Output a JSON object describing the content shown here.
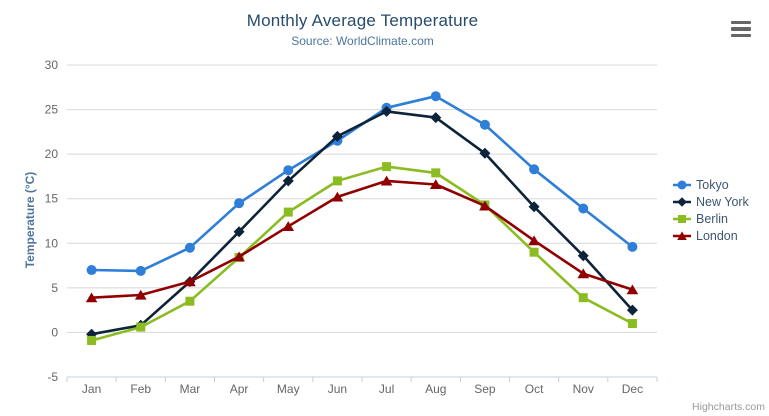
{
  "header": {
    "title": "Monthly Average Temperature",
    "subtitle": "Source: WorldClimate.com"
  },
  "credits": "Highcharts.com",
  "chart_data": {
    "type": "line",
    "title": "Monthly Average Temperature",
    "subtitle": "Source: WorldClimate.com",
    "categories": [
      "Jan",
      "Feb",
      "Mar",
      "Apr",
      "May",
      "Jun",
      "Jul",
      "Aug",
      "Sep",
      "Oct",
      "Nov",
      "Dec"
    ],
    "series": [
      {
        "name": "Tokyo",
        "color": "#2f7ed8",
        "marker": "circle",
        "values": [
          7.0,
          6.9,
          9.5,
          14.5,
          18.2,
          21.5,
          25.2,
          26.5,
          23.3,
          18.3,
          13.9,
          9.6
        ]
      },
      {
        "name": "New York",
        "color": "#0d233a",
        "marker": "diamond",
        "values": [
          -0.2,
          0.8,
          5.7,
          11.3,
          17.0,
          22.0,
          24.8,
          24.1,
          20.1,
          14.1,
          8.6,
          2.5
        ]
      },
      {
        "name": "Berlin",
        "color": "#8bbc21",
        "marker": "square",
        "values": [
          -0.9,
          0.6,
          3.5,
          8.4,
          13.5,
          17.0,
          18.6,
          17.9,
          14.3,
          9.0,
          3.9,
          1.0
        ]
      },
      {
        "name": "London",
        "color": "#910000",
        "marker": "triangle",
        "values": [
          3.9,
          4.2,
          5.7,
          8.5,
          11.9,
          15.2,
          17.0,
          16.6,
          14.2,
          10.3,
          6.6,
          4.8
        ]
      }
    ],
    "xlabel": "",
    "ylabel": "Temperature (°C)",
    "ylim": [
      -5,
      30
    ],
    "ytick_step": 5,
    "grid": true,
    "legend_position": "right",
    "grid_color": "#d8d8d8",
    "axis_color": "#c0d0e0"
  }
}
